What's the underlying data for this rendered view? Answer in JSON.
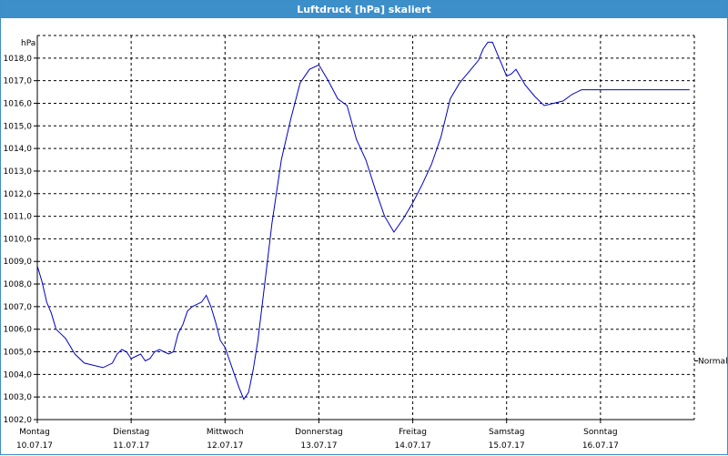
{
  "window": {
    "title": "Luftdruck [hPa] skaliert"
  },
  "colors": {
    "titlebar": "#3d8fca",
    "series": "#0000c8",
    "grid": "#000000"
  },
  "chart_data": {
    "type": "line",
    "title": "Luftdruck [hPa] skaliert",
    "ylabel": "hPa",
    "ylim": [
      1002.0,
      1019.0
    ],
    "grid": true,
    "y_ticks": [
      "1002,0",
      "1003,0",
      "1004,0",
      "1005,0",
      "1006,0",
      "1007,0",
      "1008,0",
      "1009,0",
      "1010,0",
      "1011,0",
      "1012,0",
      "1013,0",
      "1014,0",
      "1015,0",
      "1016,0",
      "1017,0",
      "1018,0"
    ],
    "x_ticks": [
      {
        "day": "Montag",
        "date": "10.07.17"
      },
      {
        "day": "Dienstag",
        "date": "11.07.17"
      },
      {
        "day": "Mittwoch",
        "date": "12.07.17"
      },
      {
        "day": "Donnerstag",
        "date": "13.07.17"
      },
      {
        "day": "Freitag",
        "date": "14.07.17"
      },
      {
        "day": "Samstag",
        "date": "15.07.17"
      },
      {
        "day": "Sonntag",
        "date": "16.07.17"
      }
    ],
    "xlim_days": [
      0,
      7
    ],
    "reference_line": {
      "label": "Normal",
      "value": 1004.6
    },
    "series": [
      {
        "x_days": [
          0,
          0.05,
          0.1,
          0.15,
          0.2,
          0.25,
          0.3,
          0.4,
          0.5,
          0.6,
          0.7,
          0.8,
          0.85,
          0.9,
          0.95,
          1.0,
          1.05,
          1.1,
          1.15,
          1.2,
          1.25,
          1.3,
          1.35,
          1.4,
          1.45,
          1.5,
          1.55,
          1.6,
          1.65,
          1.7,
          1.75,
          1.8,
          1.85,
          1.9,
          1.95,
          2.0,
          2.05,
          2.1,
          2.15,
          2.2,
          2.25,
          2.3,
          2.35,
          2.4,
          2.5,
          2.6,
          2.7,
          2.8,
          2.9,
          3.0,
          3.1,
          3.2,
          3.3,
          3.4,
          3.5,
          3.6,
          3.7,
          3.8,
          3.9,
          4.0,
          4.1,
          4.2,
          4.3,
          4.4,
          4.5,
          4.6,
          4.7,
          4.75,
          4.8,
          4.85,
          4.9,
          4.95,
          5.0,
          5.05,
          5.1,
          5.2,
          5.3,
          5.4,
          5.5,
          5.6,
          5.7,
          5.8,
          5.9,
          6.0,
          6.05,
          6.1,
          6.2,
          6.3,
          6.35,
          6.4,
          6.5,
          6.6,
          6.7,
          6.8,
          6.9,
          6.95
        ],
        "values": [
          1008.8,
          1008.1,
          1007.2,
          1006.7,
          1006.0,
          1005.8,
          1005.6,
          1004.9,
          1004.5,
          1004.4,
          1004.3,
          1004.5,
          1004.9,
          1005.1,
          1005.0,
          1004.7,
          1004.8,
          1004.9,
          1004.6,
          1004.7,
          1005.0,
          1005.1,
          1005.0,
          1004.9,
          1005.0,
          1005.8,
          1006.2,
          1006.8,
          1007.0,
          1007.1,
          1007.2,
          1007.5,
          1007.0,
          1006.3,
          1005.5,
          1005.2,
          1004.6,
          1004.0,
          1003.4,
          1002.9,
          1003.2,
          1004.2,
          1005.5,
          1007.2,
          1010.7,
          1013.5,
          1015.3,
          1016.9,
          1017.5,
          1017.7,
          1017.0,
          1016.2,
          1015.9,
          1014.4,
          1013.5,
          1012.2,
          1011.0,
          1010.3,
          1010.9,
          1011.6,
          1012.4,
          1013.3,
          1014.5,
          1016.2,
          1016.9,
          1017.4,
          1017.9,
          1018.4,
          1018.7,
          1018.7,
          1018.2,
          1017.7,
          1017.2,
          1017.3,
          1017.5,
          1016.8,
          1016.3,
          1015.9,
          1016.0,
          1016.1,
          1016.4,
          1016.6,
          1016.6,
          1016.6,
          1016.6,
          1016.6,
          1016.6,
          1016.6,
          1016.6,
          1016.6,
          1016.6,
          1016.6,
          1016.6,
          1016.6,
          1016.6,
          1016.6
        ]
      }
    ]
  }
}
